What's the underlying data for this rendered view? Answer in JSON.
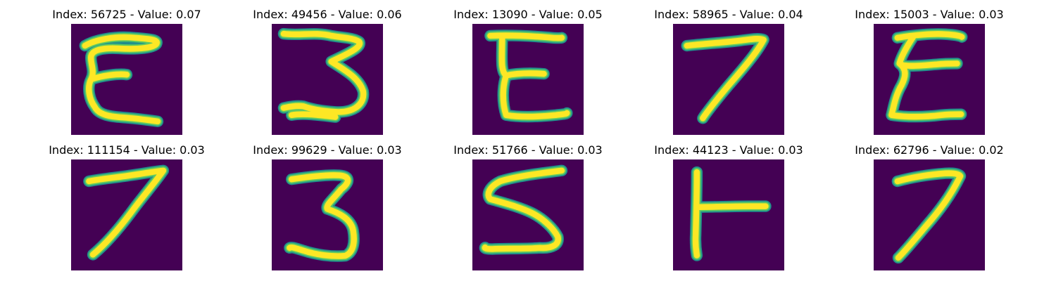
{
  "colors": {
    "background": "#440154",
    "stroke_outer": "#21918c",
    "stroke_mid": "#5ec962",
    "stroke_core": "#fde725"
  },
  "panels": [
    {
      "title": "Index: 56725 - Value: 0.07",
      "glyph": "E-curly"
    },
    {
      "title": "Index: 49456 - Value: 0.06",
      "glyph": "3-wide"
    },
    {
      "title": "Index: 13090 - Value: 0.05",
      "glyph": "E"
    },
    {
      "title": "Index: 58965 - Value: 0.04",
      "glyph": "7"
    },
    {
      "title": "Index: 15003 - Value: 0.03",
      "glyph": "E-slanted"
    },
    {
      "title": "Index: 111154 - Value: 0.03",
      "glyph": "7-bold"
    },
    {
      "title": "Index: 99629 - Value: 0.03",
      "glyph": "3"
    },
    {
      "title": "Index: 51766 - Value: 0.03",
      "glyph": "5"
    },
    {
      "title": "Index: 44123 - Value: 0.03",
      "glyph": "T-sideways"
    },
    {
      "title": "Index: 62796 - Value: 0.02",
      "glyph": "7-thin"
    }
  ]
}
